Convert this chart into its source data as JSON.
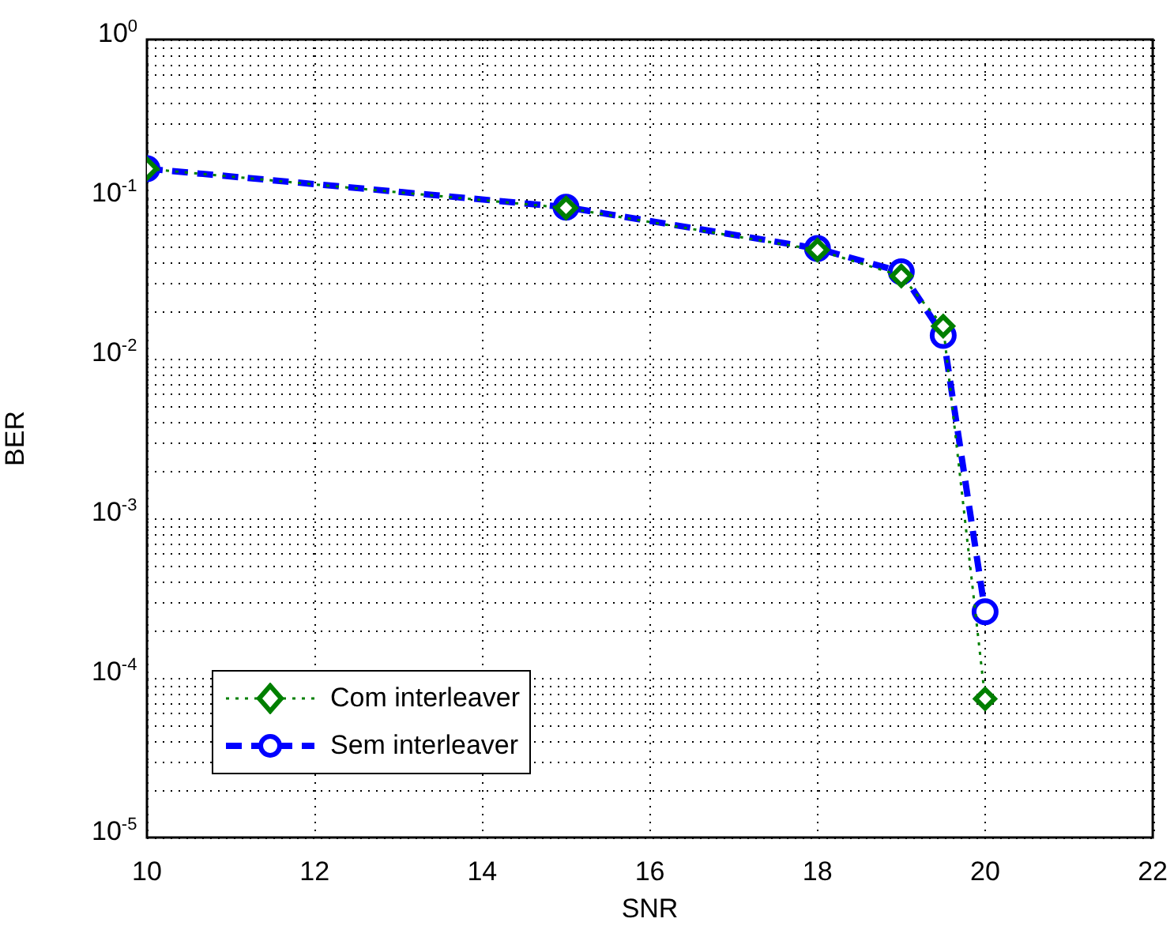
{
  "chart_data": {
    "type": "line",
    "xlabel": "SNR",
    "ylabel": "BER",
    "x": [
      10,
      15,
      18,
      19,
      19.5,
      20
    ],
    "series": [
      {
        "name": "Com interleaver",
        "color": "#007f00",
        "marker": "diamond",
        "line_style": "dotted",
        "values": [
          0.155,
          0.088,
          0.048,
          0.033,
          0.016,
          7.4e-05
        ]
      },
      {
        "name": "Sem interleaver",
        "color": "#0000ff",
        "marker": "circle",
        "line_style": "dashed",
        "values": [
          0.155,
          0.089,
          0.049,
          0.035,
          0.014,
          0.00026
        ]
      }
    ],
    "xlim": [
      10,
      22
    ],
    "xticks": [
      10,
      12,
      14,
      16,
      18,
      20,
      22
    ],
    "ylim": [
      1e-05,
      1
    ],
    "yticks": [
      {
        "value": 1e-05,
        "label": "10$^{-5}$"
      },
      {
        "value": 0.0001,
        "label": "10$^{-4}$"
      },
      {
        "value": 0.001,
        "label": "10$^{-3}$"
      },
      {
        "value": 0.01,
        "label": "10$^{-2}$"
      },
      {
        "value": 0.1,
        "label": "10$^{-1}$"
      },
      {
        "value": 1,
        "label": "10$^{0}$"
      }
    ],
    "log": "y",
    "grid": true,
    "legend": "bottom left"
  }
}
